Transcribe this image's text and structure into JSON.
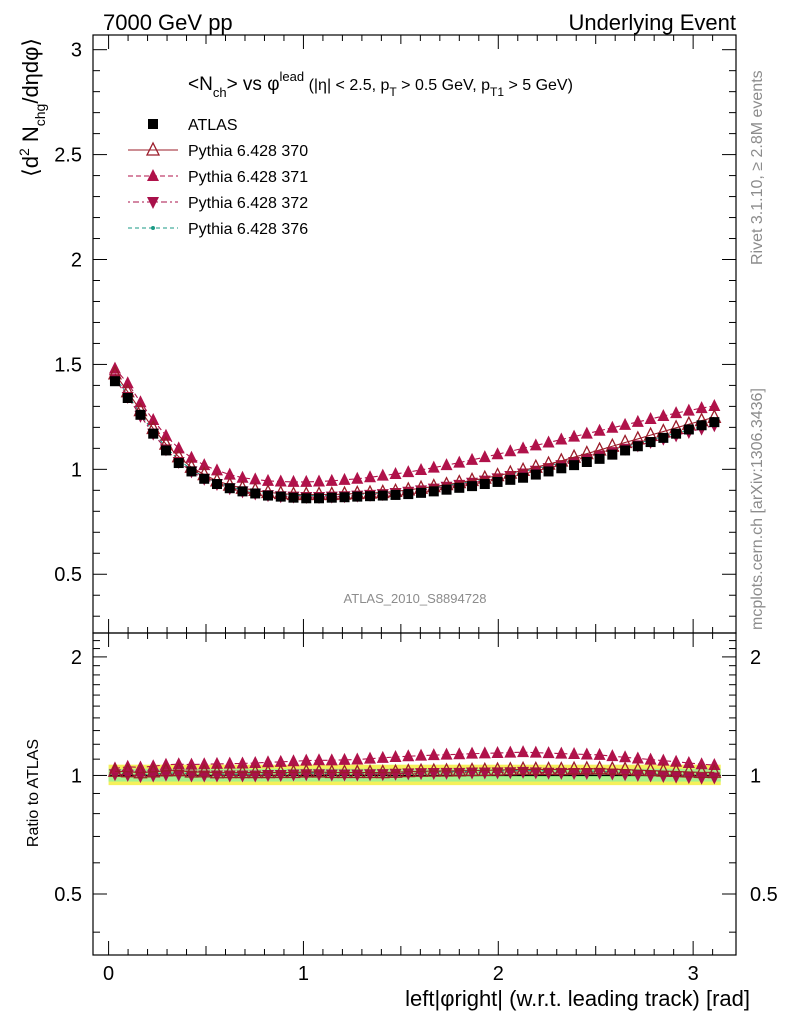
{
  "header": {
    "left": "7000 GeV pp",
    "right": "Underlying Event"
  },
  "side": {
    "rivet": "Rivet 3.1.10, ≥ 2.8M events",
    "ref": "mcplots.cern.ch [arXiv:1306.3436]"
  },
  "watermark": "ATLAS_2010_S8894728",
  "chart_data": {
    "type": "scatter",
    "title": "<N_ch> vs φ^lead (|η| < 2.5, p_T > 0.5 GeV, p_T1 > 5 GeV)",
    "ylabel": "⟨d² N_chg/dηdφ⟩",
    "xlabel": "left|φright| (w.r.t. leading track) [rad]",
    "ratio_ylabel": "Ratio to ATLAS",
    "xlim": [
      -0.08,
      3.22
    ],
    "ylim": [
      0.22,
      3.07
    ],
    "ratio_ylim": [
      0.35,
      2.3
    ],
    "xticks": [
      "0",
      "1",
      "2",
      "3"
    ],
    "yticks": [
      "0.5",
      "1",
      "1.5",
      "2",
      "2.5",
      "3"
    ],
    "ratio_yticks": [
      "0.5",
      "1",
      "2"
    ],
    "legend_position": "top-left",
    "colors": {
      "atlas": "#000000",
      "p370": "#9b1c2a",
      "p371": "#b0124a",
      "p372": "#a8104a",
      "p376": "#1a9a84",
      "band_inner": "#a6f28c",
      "band_outer": "#f5f05a"
    },
    "x": [
      0.0327,
      0.0982,
      0.1636,
      0.2291,
      0.2945,
      0.36,
      0.4254,
      0.4909,
      0.5563,
      0.6218,
      0.6872,
      0.7527,
      0.8181,
      0.8836,
      0.949,
      1.0145,
      1.0799,
      1.1454,
      1.2108,
      1.2763,
      1.3417,
      1.4072,
      1.4726,
      1.5381,
      1.6035,
      1.669,
      1.7344,
      1.7999,
      1.8653,
      1.9308,
      1.9962,
      2.0617,
      2.1271,
      2.1926,
      2.258,
      2.3235,
      2.3889,
      2.4544,
      2.5198,
      2.5853,
      2.6507,
      2.7162,
      2.7816,
      2.8471,
      2.9125,
      2.978,
      3.0434,
      3.1089
    ],
    "series": [
      {
        "name": "ATLAS",
        "marker": "filled-square",
        "values": [
          1.42,
          1.34,
          1.26,
          1.17,
          1.09,
          1.03,
          0.99,
          0.955,
          0.93,
          0.91,
          0.895,
          0.885,
          0.875,
          0.87,
          0.865,
          0.862,
          0.862,
          0.865,
          0.867,
          0.87,
          0.872,
          0.875,
          0.878,
          0.882,
          0.888,
          0.895,
          0.903,
          0.912,
          0.92,
          0.93,
          0.94,
          0.95,
          0.96,
          0.975,
          0.99,
          1.005,
          1.02,
          1.035,
          1.05,
          1.07,
          1.09,
          1.11,
          1.13,
          1.15,
          1.17,
          1.19,
          1.21,
          1.225
        ]
      },
      {
        "name": "Pythia 6.428 370",
        "marker": "open-triangle-up",
        "values": [
          1.455,
          1.37,
          1.28,
          1.195,
          1.12,
          1.06,
          1.01,
          0.975,
          0.945,
          0.925,
          0.91,
          0.9,
          0.89,
          0.885,
          0.88,
          0.88,
          0.88,
          0.88,
          0.882,
          0.885,
          0.887,
          0.89,
          0.895,
          0.902,
          0.91,
          0.918,
          0.927,
          0.937,
          0.947,
          0.958,
          0.97,
          0.982,
          0.995,
          1.01,
          1.025,
          1.04,
          1.058,
          1.075,
          1.092,
          1.11,
          1.128,
          1.145,
          1.163,
          1.18,
          1.198,
          1.215,
          1.232,
          1.248
        ]
      },
      {
        "name": "Pythia 6.428 371",
        "marker": "filled-triangle-up",
        "values": [
          1.48,
          1.41,
          1.32,
          1.235,
          1.16,
          1.1,
          1.055,
          1.02,
          0.995,
          0.975,
          0.96,
          0.952,
          0.945,
          0.942,
          0.94,
          0.94,
          0.942,
          0.945,
          0.95,
          0.955,
          0.962,
          0.97,
          0.978,
          0.987,
          0.997,
          1.008,
          1.02,
          1.032,
          1.045,
          1.058,
          1.072,
          1.086,
          1.1,
          1.114,
          1.128,
          1.142,
          1.156,
          1.17,
          1.184,
          1.198,
          1.212,
          1.226,
          1.24,
          1.254,
          1.268,
          1.28,
          1.292,
          1.302
        ]
      },
      {
        "name": "Pythia 6.428 372",
        "marker": "filled-triangle-down",
        "values": [
          1.43,
          1.345,
          1.255,
          1.17,
          1.095,
          1.035,
          0.99,
          0.955,
          0.93,
          0.91,
          0.895,
          0.885,
          0.877,
          0.872,
          0.87,
          0.868,
          0.868,
          0.87,
          0.872,
          0.875,
          0.878,
          0.882,
          0.887,
          0.893,
          0.9,
          0.908,
          0.917,
          0.926,
          0.936,
          0.946,
          0.957,
          0.968,
          0.98,
          0.993,
          1.006,
          1.02,
          1.035,
          1.05,
          1.066,
          1.082,
          1.098,
          1.114,
          1.13,
          1.146,
          1.162,
          1.178,
          1.194,
          1.21
        ]
      },
      {
        "name": "Pythia 6.428 376",
        "marker": "dot",
        "values": [
          1.44,
          1.355,
          1.265,
          1.18,
          1.105,
          1.045,
          1.0,
          0.963,
          0.937,
          0.917,
          0.902,
          0.892,
          0.884,
          0.879,
          0.876,
          0.875,
          0.875,
          0.876,
          0.878,
          0.881,
          0.884,
          0.888,
          0.893,
          0.899,
          0.906,
          0.914,
          0.923,
          0.933,
          0.943,
          0.954,
          0.965,
          0.977,
          0.99,
          1.003,
          1.017,
          1.031,
          1.046,
          1.061,
          1.076,
          1.092,
          1.108,
          1.124,
          1.14,
          1.156,
          1.172,
          1.188,
          1.204,
          1.219
        ]
      }
    ]
  }
}
